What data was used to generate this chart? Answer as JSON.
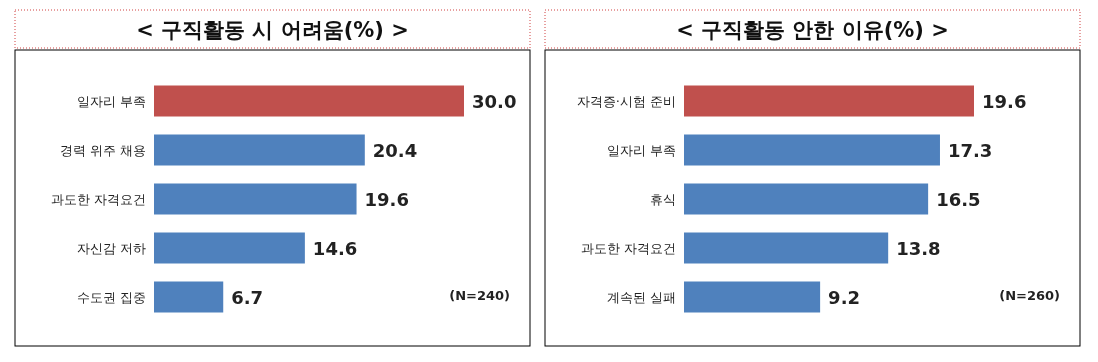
{
  "chart_data": [
    {
      "type": "bar",
      "orientation": "horizontal",
      "title": "< 구직활동 시 어려움(%) >",
      "categories": [
        "일자리 부족",
        "경력 위주 채용",
        "과도한 자격요건",
        "자신감 저하",
        "수도권 집중"
      ],
      "values": [
        30.0,
        20.4,
        19.6,
        14.6,
        6.7
      ],
      "colors": [
        "#c0504d",
        "#4f81bd",
        "#4f81bd",
        "#4f81bd",
        "#4f81bd"
      ],
      "value_labels": [
        "30.0",
        "20.4",
        "19.6",
        "14.6",
        "6.7"
      ],
      "annotations": [
        "(N=240)"
      ]
    },
    {
      "type": "bar",
      "orientation": "horizontal",
      "title": "< 구직활동 안한 이유(%) >",
      "categories": [
        "자격증·시험 준비",
        "일자리 부족",
        "휴식",
        "과도한 자격요건",
        "계속된 실패"
      ],
      "values": [
        19.6,
        17.3,
        16.5,
        13.8,
        9.2
      ],
      "colors": [
        "#c0504d",
        "#4f81bd",
        "#4f81bd",
        "#4f81bd",
        "#4f81bd"
      ],
      "value_labels": [
        "19.6",
        "17.3",
        "16.5",
        "13.8",
        "9.2"
      ],
      "annotations": [
        "(N=260)"
      ]
    }
  ]
}
